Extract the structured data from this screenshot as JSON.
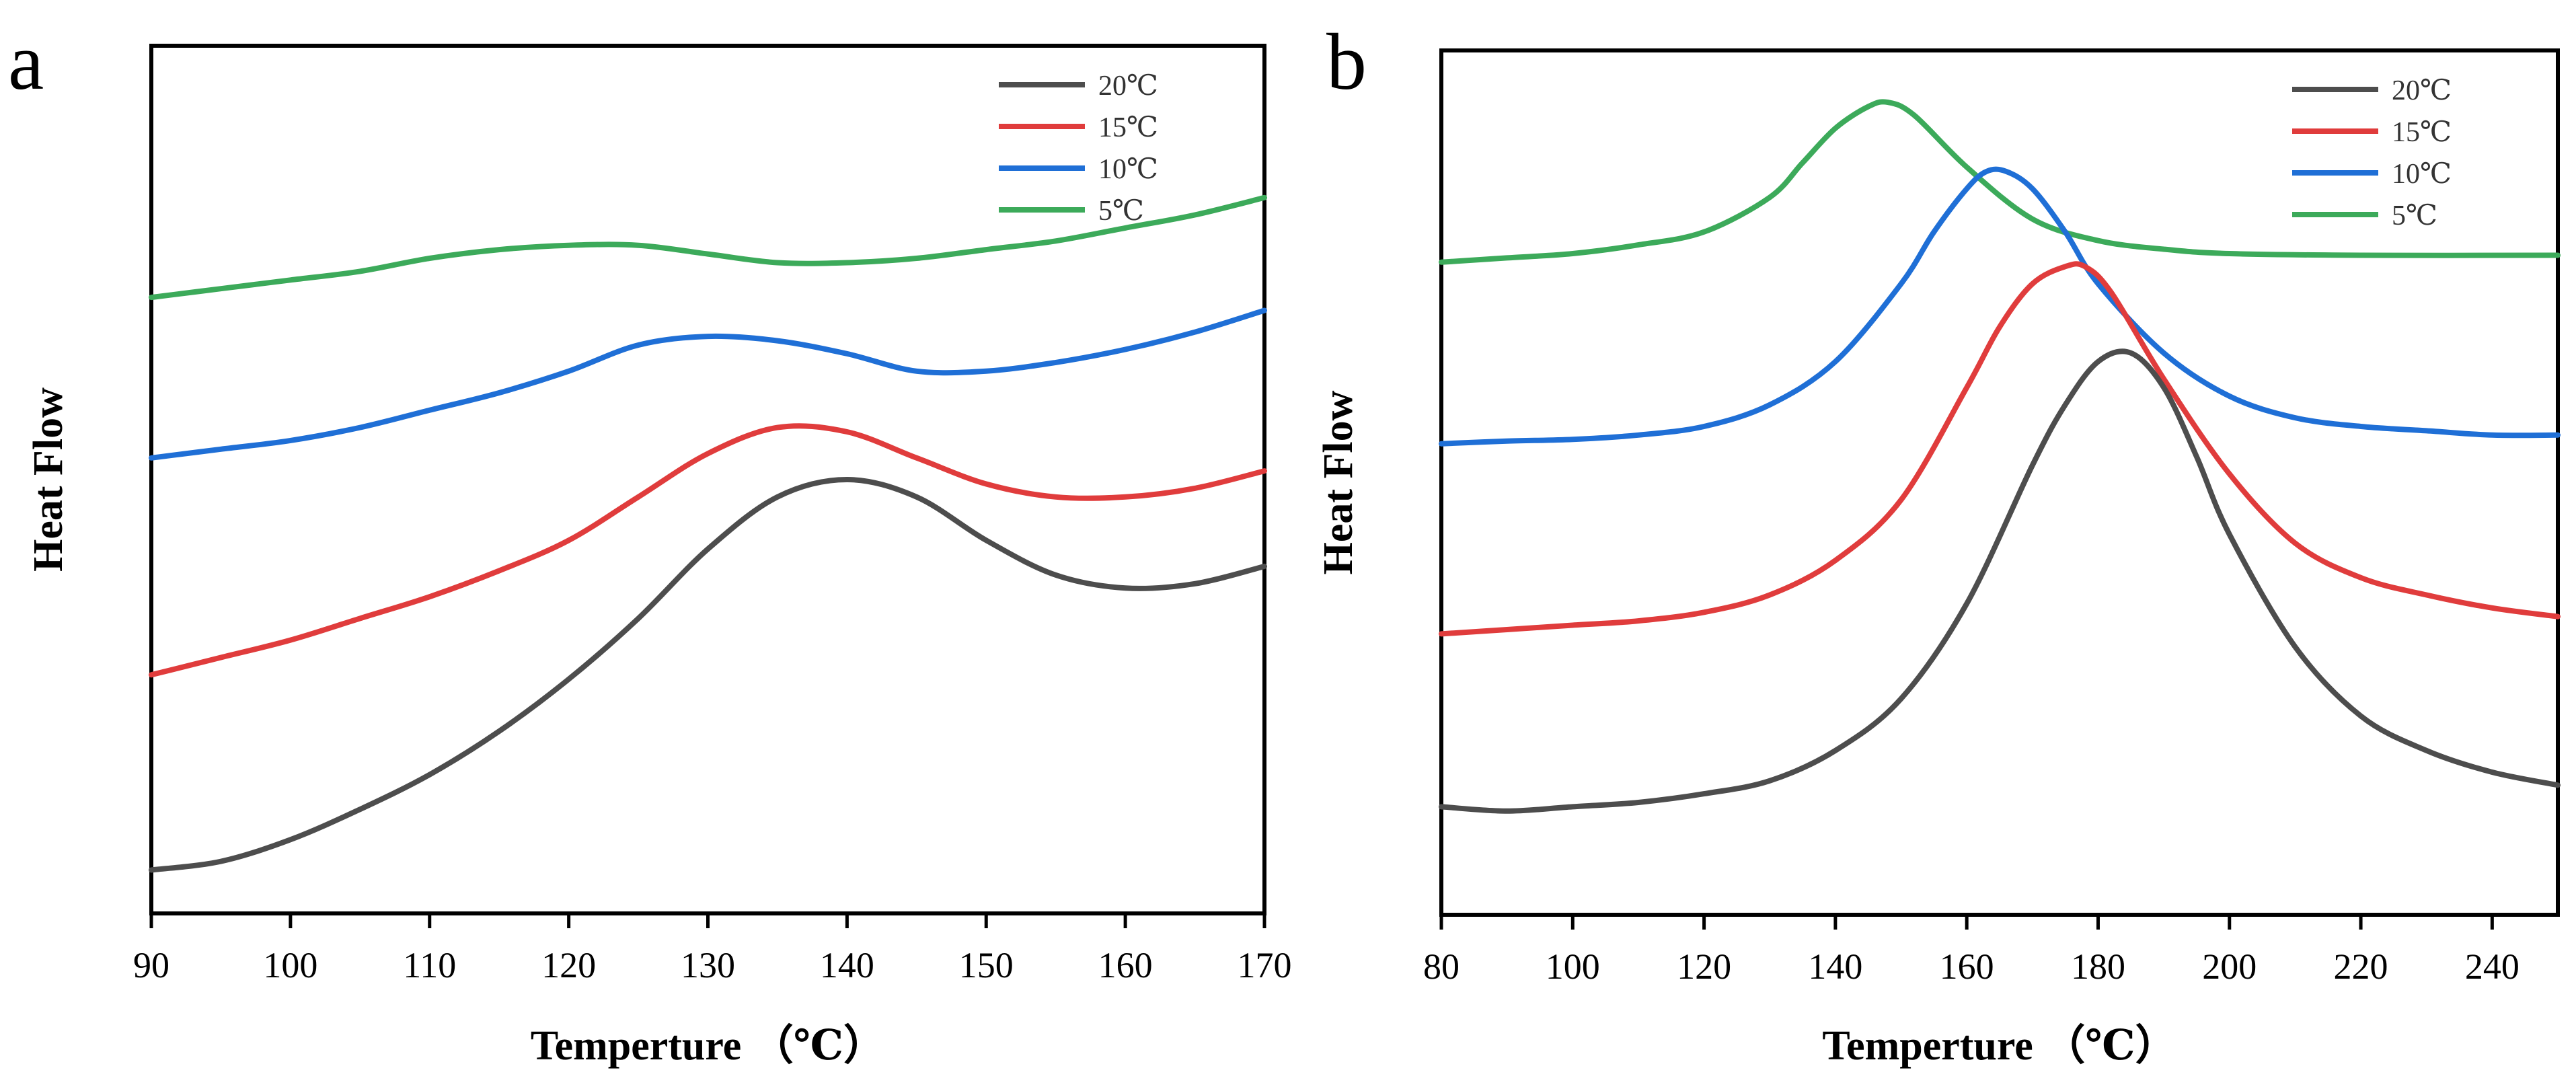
{
  "chart_data": [
    {
      "panel_label": "a",
      "type": "line",
      "xlabel": "Temperture （℃）",
      "ylabel": "Heat Flow",
      "xlim": [
        90,
        170
      ],
      "ylim": [
        0,
        100
      ],
      "xticks": [
        90,
        100,
        110,
        120,
        130,
        140,
        150,
        160,
        170
      ],
      "yticks_visible": false,
      "grid": false,
      "legend_position": "top-right",
      "series": [
        {
          "name": "20℃",
          "color": "#4d4d4d",
          "x": [
            90,
            95,
            100,
            105,
            110,
            115,
            120,
            125,
            130,
            135,
            140,
            145,
            150,
            155,
            160,
            165,
            170
          ],
          "y": [
            5,
            6,
            8.5,
            12,
            16,
            21,
            27,
            34,
            42,
            48,
            50,
            48,
            43,
            39,
            37.5,
            38,
            40
          ]
        },
        {
          "name": "15℃",
          "color": "#e03c3c",
          "x": [
            90,
            95,
            100,
            105,
            110,
            115,
            120,
            125,
            130,
            135,
            140,
            145,
            150,
            155,
            160,
            165,
            170
          ],
          "y": [
            27.5,
            29.5,
            31.5,
            34,
            36.5,
            39.5,
            43,
            48,
            53,
            56,
            55.5,
            52.5,
            49.5,
            48,
            48,
            49,
            51
          ]
        },
        {
          "name": "10℃",
          "color": "#1f6fd6",
          "x": [
            90,
            95,
            100,
            105,
            110,
            115,
            120,
            125,
            130,
            135,
            140,
            145,
            150,
            155,
            160,
            165,
            170
          ],
          "y": [
            52.5,
            53.5,
            54.5,
            56,
            58,
            60,
            62.5,
            65.5,
            66.5,
            66,
            64.5,
            62.5,
            62.5,
            63.5,
            65,
            67,
            69.5
          ]
        },
        {
          "name": "5℃",
          "color": "#3caa5a",
          "x": [
            90,
            95,
            100,
            105,
            110,
            115,
            120,
            125,
            130,
            135,
            140,
            145,
            150,
            155,
            160,
            165,
            170
          ],
          "y": [
            71,
            72,
            73,
            74,
            75.5,
            76.5,
            77,
            77,
            76,
            75,
            75,
            75.5,
            76.5,
            77.5,
            79,
            80.5,
            82.5
          ]
        }
      ]
    },
    {
      "panel_label": "b",
      "type": "line",
      "xlabel": "Temperture （℃）",
      "ylabel": "Heat Flow",
      "xlim": [
        80,
        250
      ],
      "ylim": [
        0,
        100
      ],
      "xticks": [
        80,
        100,
        120,
        140,
        160,
        180,
        200,
        220,
        240
      ],
      "yticks_visible": false,
      "grid": false,
      "legend_position": "top-right",
      "series": [
        {
          "name": "20℃",
          "color": "#4d4d4d",
          "x": [
            80,
            90,
            100,
            110,
            120,
            130,
            140,
            150,
            160,
            170,
            175,
            180,
            185,
            190,
            195,
            200,
            210,
            220,
            230,
            240,
            250
          ],
          "y": [
            12.5,
            12,
            12.5,
            13,
            14,
            15.5,
            19,
            25,
            36,
            52,
            59,
            64,
            65,
            61,
            53,
            44,
            31,
            23,
            19,
            16.5,
            15
          ]
        },
        {
          "name": "15℃",
          "color": "#e03c3c",
          "x": [
            80,
            90,
            100,
            110,
            120,
            130,
            140,
            150,
            160,
            165,
            170,
            175,
            178,
            182,
            190,
            200,
            210,
            220,
            230,
            240,
            250
          ],
          "y": [
            32.5,
            33,
            33.5,
            34,
            35,
            37,
            41,
            48,
            61,
            68,
            73,
            75,
            75,
            72,
            62,
            51,
            43,
            39,
            37,
            35.5,
            34.5
          ]
        },
        {
          "name": "10℃",
          "color": "#1f6fd6",
          "x": [
            80,
            90,
            100,
            110,
            120,
            130,
            140,
            150,
            155,
            160,
            163,
            166,
            170,
            175,
            180,
            190,
            200,
            210,
            220,
            230,
            240,
            250
          ],
          "y": [
            54.5,
            54.8,
            55,
            55.5,
            56.5,
            59,
            64,
            73,
            79,
            84,
            86,
            86,
            84,
            79,
            73,
            65,
            60,
            57.5,
            56.5,
            56,
            55.5,
            55.5
          ]
        },
        {
          "name": "5℃",
          "color": "#3caa5a",
          "x": [
            80,
            90,
            100,
            110,
            120,
            130,
            135,
            140,
            145,
            148,
            152,
            160,
            170,
            180,
            190,
            200,
            220,
            250
          ],
          "y": [
            75.5,
            76,
            76.5,
            77.5,
            79,
            83,
            87,
            91,
            93.5,
            94,
            92.5,
            86.5,
            80.5,
            78,
            77,
            76.5,
            76.3,
            76.3
          ]
        }
      ]
    }
  ]
}
